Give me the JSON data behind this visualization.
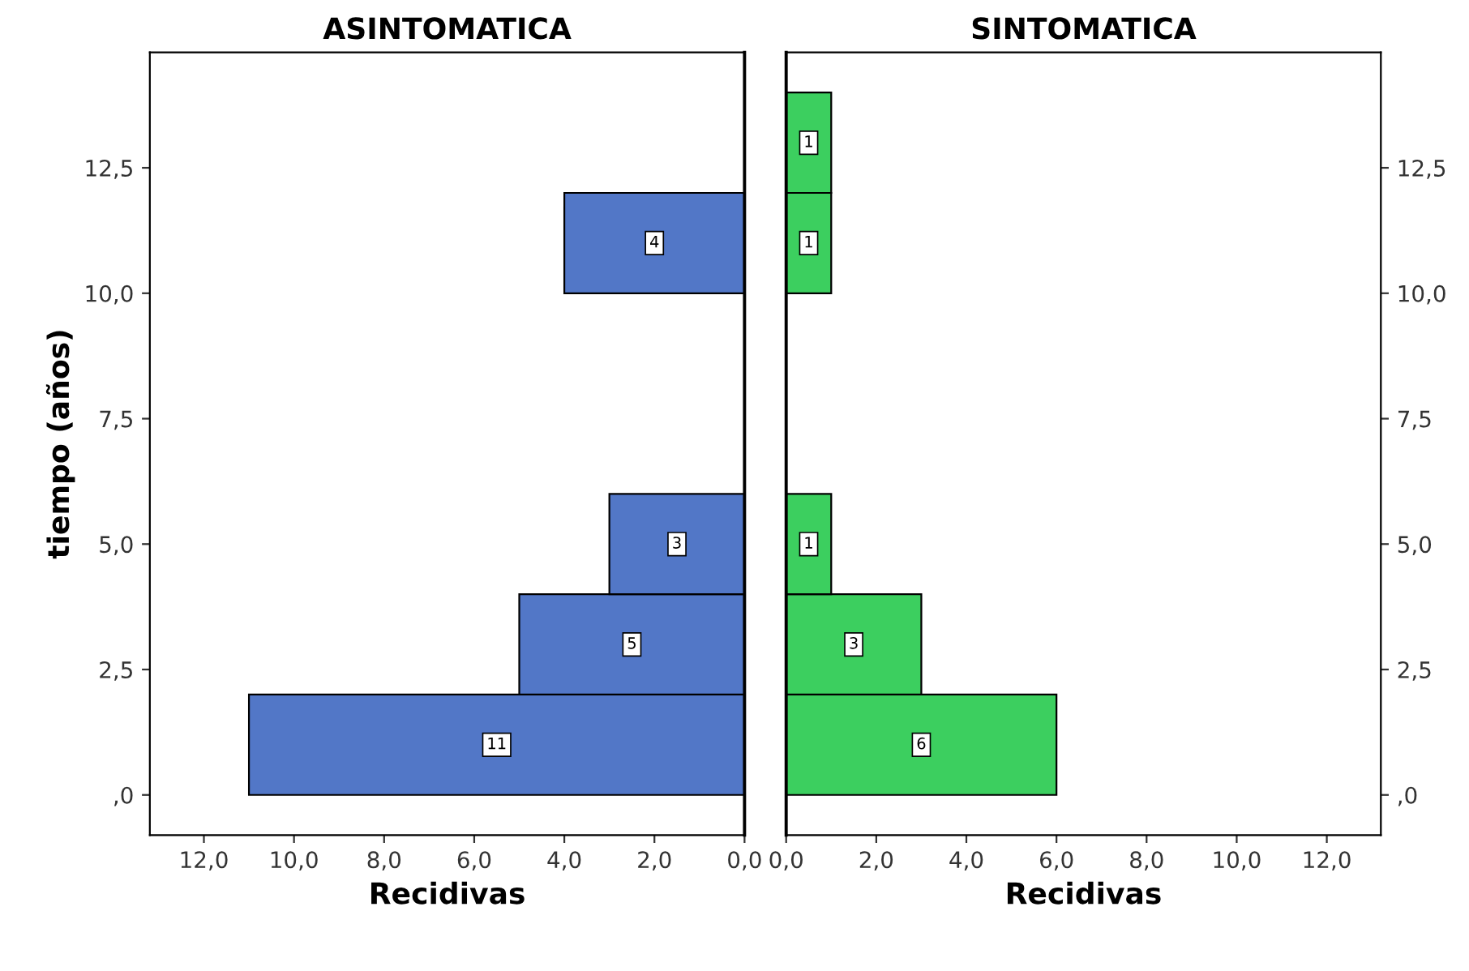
{
  "chart_data": [
    {
      "type": "histogram",
      "orientation": "horizontal",
      "title": "ASINTOMATICA",
      "xlabel": "Recidivas",
      "ylabel": "tiempo (años)",
      "bins": [
        0,
        2,
        4,
        6,
        8,
        10,
        12,
        14
      ],
      "values": [
        11,
        5,
        3,
        0,
        0,
        4,
        0
      ],
      "value_labels": [
        "11",
        "5",
        "3",
        null,
        null,
        "4",
        null
      ],
      "color": "#5277c7",
      "xlim": [
        13.2,
        0
      ],
      "xticks": [
        {
          "value": 12,
          "label": "12,0"
        },
        {
          "value": 10,
          "label": "10,0"
        },
        {
          "value": 8,
          "label": "8,0"
        },
        {
          "value": 6,
          "label": "6,0"
        },
        {
          "value": 4,
          "label": "4,0"
        },
        {
          "value": 2,
          "label": "2,0"
        },
        {
          "value": 0,
          "label": "0,0"
        }
      ],
      "ylim": [
        -0.8,
        14.8
      ],
      "yticks": [
        {
          "value": 0,
          "label": ",0"
        },
        {
          "value": 2.5,
          "label": "2,5"
        },
        {
          "value": 5,
          "label": "5,0"
        },
        {
          "value": 7.5,
          "label": "7,5"
        },
        {
          "value": 10,
          "label": "10,0"
        },
        {
          "value": 12.5,
          "label": "12,5"
        }
      ],
      "grid": false
    },
    {
      "type": "histogram",
      "orientation": "horizontal",
      "title": "SINTOMATICA",
      "xlabel": "Recidivas",
      "bins": [
        0,
        2,
        4,
        6,
        8,
        10,
        12,
        14
      ],
      "values": [
        6,
        3,
        1,
        0,
        0,
        1,
        1
      ],
      "value_labels": [
        "6",
        "3",
        "1",
        null,
        null,
        "1",
        "1"
      ],
      "color": "#3ccf5f",
      "xlim": [
        0,
        13.2
      ],
      "xticks": [
        {
          "value": 0,
          "label": "0,0"
        },
        {
          "value": 2,
          "label": "2,0"
        },
        {
          "value": 4,
          "label": "4,0"
        },
        {
          "value": 6,
          "label": "6,0"
        },
        {
          "value": 8,
          "label": "8,0"
        },
        {
          "value": 10,
          "label": "10,0"
        },
        {
          "value": 12,
          "label": "12,0"
        }
      ],
      "ylim": [
        -0.8,
        14.8
      ],
      "yticks": [
        {
          "value": 0,
          "label": ",0"
        },
        {
          "value": 2.5,
          "label": "2,5"
        },
        {
          "value": 5,
          "label": "5,0"
        },
        {
          "value": 7.5,
          "label": "7,5"
        },
        {
          "value": 10,
          "label": "10,0"
        },
        {
          "value": 12.5,
          "label": "12,5"
        }
      ],
      "grid": false
    }
  ]
}
